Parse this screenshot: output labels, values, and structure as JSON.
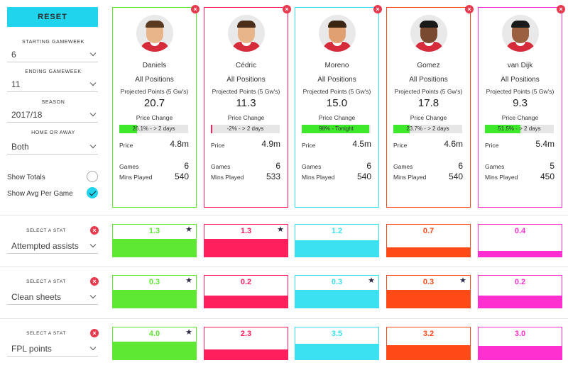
{
  "sidebar": {
    "reset_label": "RESET",
    "starting_gameweek": {
      "label": "STARTING GAMEWEEK",
      "value": "6"
    },
    "ending_gameweek": {
      "label": "ENDING GAMEWEEK",
      "value": "11"
    },
    "season": {
      "label": "SEASON",
      "value": "2017/18"
    },
    "home_away": {
      "label": "HOME OR AWAY",
      "value": "Both"
    },
    "show_totals": {
      "label": "Show Totals",
      "checked": false
    },
    "show_avg": {
      "label": "Show Avg Per Game",
      "checked": true
    }
  },
  "colors": {
    "accent": "#1fd4ec",
    "close": "#e8394e"
  },
  "card_labels": {
    "positions": "All Positions",
    "projected_label": "Projected Points (5 Gw's)",
    "price_change_label": "Price Change",
    "price_label": "Price",
    "games_label": "Games",
    "mins_label": "Mins Played"
  },
  "players": [
    {
      "name": "Daniels",
      "color": "#5ee832",
      "projected": "20.7",
      "price_change_text": "26.1% - > 2 days",
      "price_change_fill": 0.26,
      "price_change_color": "#3ee82a",
      "price": "4.8m",
      "games": "6",
      "mins": "540",
      "skin": "#e8b48a",
      "hair": "#5a3a22",
      "kit": "#d62b3a"
    },
    {
      "name": "Cédric",
      "color": "#ff1f5c",
      "projected": "11.3",
      "price_change_text": "-2% - > 2 days",
      "price_change_fill": 0.02,
      "price_change_color": "#ff1f5c",
      "price": "4.9m",
      "games": "6",
      "mins": "533",
      "skin": "#e8b48a",
      "hair": "#4a2e1a",
      "kit": "#d62b3a"
    },
    {
      "name": "Moreno",
      "color": "#3be1f0",
      "projected": "15.0",
      "price_change_text": "98% - Tonight",
      "price_change_fill": 0.98,
      "price_change_color": "#3ee82a",
      "price": "4.5m",
      "games": "6",
      "mins": "540",
      "skin": "#e0a072",
      "hair": "#3a2412",
      "kit": "#d62b3a"
    },
    {
      "name": "Gomez",
      "color": "#ff4a18",
      "projected": "17.8",
      "price_change_text": "23.7% - > 2 days",
      "price_change_fill": 0.237,
      "price_change_color": "#3ee82a",
      "price": "4.6m",
      "games": "6",
      "mins": "540",
      "skin": "#7a4a30",
      "hair": "#1a1a1a",
      "kit": "#d62b3a"
    },
    {
      "name": "van Dijk",
      "color": "#ff2fd0",
      "projected": "9.3",
      "price_change_text": "51.5% - > 2 days",
      "price_change_fill": 0.515,
      "price_change_color": "#3ee82a",
      "price": "5.4m",
      "games": "5",
      "mins": "450",
      "skin": "#9a6040",
      "hair": "#1a1a1a",
      "kit": "#d62b3a"
    }
  ],
  "stat_label": "SELECT A STAT",
  "stats": [
    {
      "name": "Attempted assists",
      "values": [
        "1.3",
        "1.3",
        "1.2",
        "0.7",
        "0.4"
      ],
      "fills": [
        0.56,
        0.56,
        0.52,
        0.3,
        0.17
      ],
      "stars": [
        true,
        true,
        false,
        false,
        false
      ]
    },
    {
      "name": "Clean sheets",
      "values": [
        "0.3",
        "0.2",
        "0.3",
        "0.3",
        "0.2"
      ],
      "fills": [
        0.56,
        0.37,
        0.56,
        0.56,
        0.37
      ],
      "stars": [
        true,
        false,
        true,
        true,
        false
      ]
    },
    {
      "name": "FPL points",
      "values": [
        "4.0",
        "2.3",
        "3.5",
        "3.2",
        "3.0"
      ],
      "fills": [
        0.56,
        0.32,
        0.49,
        0.45,
        0.42
      ],
      "stars": [
        true,
        false,
        false,
        false,
        false
      ]
    }
  ]
}
